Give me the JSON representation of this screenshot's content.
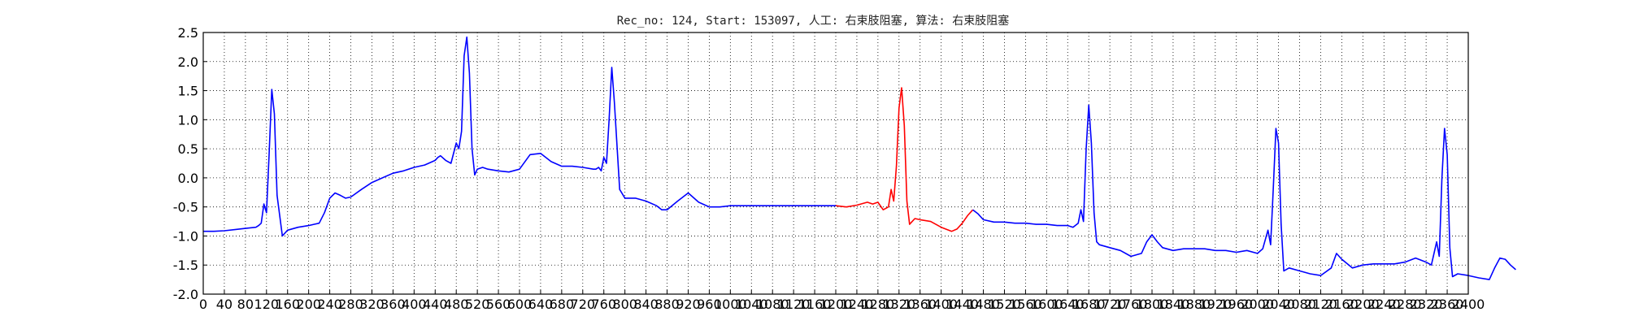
{
  "chart_data": {
    "type": "line",
    "title": "Rec_no: 124, Start: 153097, 人工: 右束肢阻塞, 算法: 右束肢阻塞",
    "xlabel": "",
    "ylabel": "",
    "xlim": [
      0,
      2400
    ],
    "ylim": [
      -2.0,
      2.5
    ],
    "grid": true,
    "colors": {
      "normal": "#0000ff",
      "highlight": "#ff0000"
    },
    "y_ticks": [
      "2.5",
      "2.0",
      "1.5",
      "1.0",
      "0.5",
      "0.0",
      "-0.5",
      "-1.0",
      "-1.5",
      "-2.0"
    ],
    "x_ticks": [
      "0",
      "40",
      "80",
      "120",
      "160",
      "200",
      "240",
      "280",
      "320",
      "360",
      "400",
      "440",
      "480",
      "520",
      "560",
      "600",
      "640",
      "680",
      "720",
      "760",
      "800",
      "840",
      "880",
      "920",
      "960",
      "1000",
      "1040",
      "1080",
      "1120",
      "1160",
      "1200",
      "1240",
      "1280",
      "1320",
      "1360",
      "1400",
      "1440",
      "1480",
      "1520",
      "1560",
      "1600",
      "1640",
      "1680",
      "1720",
      "1760",
      "1800",
      "1840",
      "1880",
      "1920",
      "1960",
      "2000",
      "2040",
      "2080",
      "2120",
      "2160",
      "2200",
      "2240",
      "2280",
      "2320",
      "2360",
      "2400"
    ],
    "series": [
      {
        "color": "normal",
        "x": [
          0,
          20,
          40,
          60,
          80,
          100,
          105,
          110,
          115,
          120,
          125,
          130,
          135,
          140,
          150,
          160,
          180,
          200,
          210,
          220,
          230,
          240,
          250,
          260,
          270,
          280,
          300,
          320,
          340,
          360,
          380,
          400,
          420,
          440,
          445,
          450,
          460,
          470,
          480,
          485,
          490,
          495,
          500,
          505,
          510,
          515,
          520,
          530,
          540,
          560,
          580,
          600,
          620,
          640,
          660,
          680,
          700,
          720,
          740,
          745,
          750,
          755,
          760,
          765,
          770,
          775,
          780,
          790,
          800,
          820,
          840,
          860,
          870,
          880,
          900,
          920,
          940,
          960,
          980,
          1000,
          1020,
          1040,
          1060,
          1080,
          1100,
          1120,
          1140,
          1160,
          1180,
          1200
        ],
        "y": [
          -0.92,
          -0.92,
          -0.91,
          -0.89,
          -0.87,
          -0.85,
          -0.82,
          -0.78,
          -0.45,
          -0.6,
          0.4,
          1.52,
          1.1,
          -0.3,
          -1.0,
          -0.9,
          -0.85,
          -0.82,
          -0.8,
          -0.78,
          -0.6,
          -0.35,
          -0.26,
          -0.3,
          -0.35,
          -0.33,
          -0.2,
          -0.08,
          0.0,
          0.08,
          0.12,
          0.18,
          0.22,
          0.3,
          0.35,
          0.38,
          0.3,
          0.25,
          0.6,
          0.5,
          0.8,
          2.1,
          2.42,
          1.8,
          0.5,
          0.05,
          0.15,
          0.18,
          0.15,
          0.12,
          0.1,
          0.15,
          0.4,
          0.42,
          0.28,
          0.2,
          0.2,
          0.18,
          0.15,
          0.15,
          0.18,
          0.12,
          0.35,
          0.25,
          1.0,
          1.9,
          1.3,
          -0.2,
          -0.35,
          -0.35,
          -0.4,
          -0.48,
          -0.55,
          -0.55,
          -0.4,
          -0.26,
          -0.42,
          -0.5,
          -0.5,
          -0.48,
          -0.48,
          -0.48,
          -0.48,
          -0.48,
          -0.48,
          -0.48,
          -0.48,
          -0.48,
          -0.48,
          -0.48
        ]
      },
      {
        "color": "highlight",
        "x": [
          1200,
          1220,
          1240,
          1260,
          1270,
          1280,
          1290,
          1300,
          1305,
          1310,
          1315,
          1320,
          1325,
          1330,
          1335,
          1340,
          1345,
          1350,
          1360,
          1380,
          1400,
          1420,
          1430,
          1440,
          1450,
          1460
        ],
        "y": [
          -0.48,
          -0.5,
          -0.47,
          -0.42,
          -0.45,
          -0.42,
          -0.55,
          -0.5,
          -0.2,
          -0.4,
          0.2,
          1.2,
          1.55,
          0.9,
          -0.4,
          -0.8,
          -0.75,
          -0.7,
          -0.72,
          -0.75,
          -0.85,
          -0.92,
          -0.88,
          -0.78,
          -0.65,
          -0.55
        ]
      },
      {
        "color": "normal",
        "x": [
          1460,
          1470,
          1480,
          1500,
          1520,
          1540,
          1560,
          1580,
          1600,
          1620,
          1640,
          1650,
          1660,
          1665,
          1670,
          1675,
          1680,
          1685,
          1690,
          1695,
          1700,
          1720,
          1740,
          1760,
          1780,
          1790,
          1800,
          1810,
          1820,
          1840,
          1860,
          1880,
          1900,
          1920,
          1940,
          1960,
          1980,
          2000,
          2010,
          2020,
          2025,
          2030,
          2035,
          2040,
          2045,
          2050,
          2060,
          2080,
          2100,
          2120,
          2140,
          2150,
          2160,
          2180,
          2200,
          2220,
          2240,
          2260,
          2280,
          2300,
          2320,
          2330,
          2340,
          2345,
          2350,
          2355,
          2360,
          2365,
          2370,
          2380,
          2400,
          2420,
          2440,
          2450,
          2460,
          2470,
          2480,
          2490
        ],
        "y": [
          -0.55,
          -0.62,
          -0.72,
          -0.76,
          -0.76,
          -0.78,
          -0.78,
          -0.8,
          -0.8,
          -0.82,
          -0.82,
          -0.85,
          -0.78,
          -0.55,
          -0.75,
          0.5,
          1.25,
          0.6,
          -0.6,
          -1.1,
          -1.15,
          -1.2,
          -1.25,
          -1.35,
          -1.3,
          -1.1,
          -0.98,
          -1.1,
          -1.2,
          -1.25,
          -1.22,
          -1.22,
          -1.22,
          -1.25,
          -1.25,
          -1.28,
          -1.25,
          -1.3,
          -1.22,
          -0.9,
          -1.15,
          -0.2,
          0.85,
          0.6,
          -0.8,
          -1.6,
          -1.55,
          -1.6,
          -1.65,
          -1.68,
          -1.55,
          -1.3,
          -1.4,
          -1.55,
          -1.5,
          -1.48,
          -1.48,
          -1.48,
          -1.45,
          -1.38,
          -1.45,
          -1.5,
          -1.1,
          -1.35,
          0.0,
          0.85,
          0.4,
          -1.2,
          -1.7,
          -1.65,
          -1.68,
          -1.72,
          -1.75,
          -1.55,
          -1.38,
          -1.4,
          -1.5,
          -1.58
        ]
      }
    ]
  }
}
